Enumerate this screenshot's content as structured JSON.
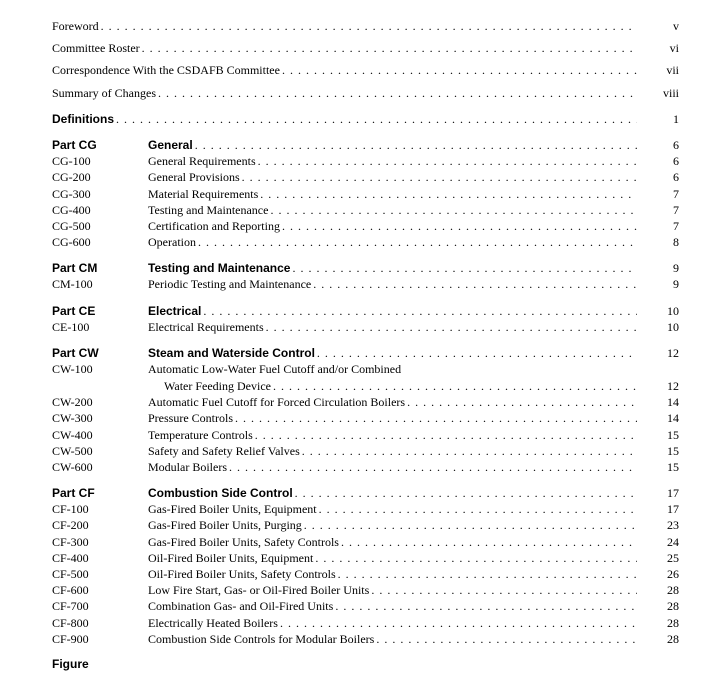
{
  "front": [
    {
      "title": "Foreword",
      "page": "v"
    },
    {
      "title": "Committee Roster",
      "page": "vi"
    },
    {
      "title": "Correspondence With the CSDAFB Committee",
      "page": "vii"
    },
    {
      "title": "Summary of Changes",
      "page": "viii"
    }
  ],
  "definitions": {
    "title": "Definitions",
    "page": "1"
  },
  "parts": [
    {
      "code": "Part CG",
      "title": "General",
      "page": "6",
      "items": [
        {
          "code": "CG-100",
          "title": "General Requirements",
          "page": "6"
        },
        {
          "code": "CG-200",
          "title": "General Provisions",
          "page": "6"
        },
        {
          "code": "CG-300",
          "title": "Material Requirements",
          "page": "7"
        },
        {
          "code": "CG-400",
          "title": "Testing and Maintenance",
          "page": "7"
        },
        {
          "code": "CG-500",
          "title": "Certification and Reporting",
          "page": "7"
        },
        {
          "code": "CG-600",
          "title": "Operation",
          "page": "8"
        }
      ]
    },
    {
      "code": "Part CM",
      "title": "Testing and Maintenance",
      "page": "9",
      "items": [
        {
          "code": "CM-100",
          "title": "Periodic Testing and Maintenance",
          "page": "9"
        }
      ]
    },
    {
      "code": "Part CE",
      "title": "Electrical",
      "page": "10",
      "items": [
        {
          "code": "CE-100",
          "title": "Electrical Requirements",
          "page": "10"
        }
      ]
    },
    {
      "code": "Part CW",
      "title": "Steam and Waterside Control",
      "page": "12",
      "items": [
        {
          "code": "CW-100",
          "title_wrap": "Automatic Low-Water Fuel Cutoff and/or Combined",
          "title_cont": "Water Feeding Device",
          "page": "12"
        },
        {
          "code": "CW-200",
          "title": "Automatic Fuel Cutoff for Forced Circulation Boilers",
          "page": "14"
        },
        {
          "code": "CW-300",
          "title": "Pressure Controls",
          "page": "14"
        },
        {
          "code": "CW-400",
          "title": "Temperature Controls",
          "page": "15"
        },
        {
          "code": "CW-500",
          "title": "Safety and Safety Relief Valves",
          "page": "15"
        },
        {
          "code": "CW-600",
          "title": "Modular Boilers",
          "page": "15"
        }
      ]
    },
    {
      "code": "Part CF",
      "title": "Combustion Side Control",
      "page": "17",
      "items": [
        {
          "code": "CF-100",
          "title": "Gas-Fired Boiler Units, Equipment",
          "page": "17"
        },
        {
          "code": "CF-200",
          "title": "Gas-Fired Boiler Units, Purging",
          "page": "23"
        },
        {
          "code": "CF-300",
          "title": "Gas-Fired Boiler Units, Safety Controls",
          "page": "24"
        },
        {
          "code": "CF-400",
          "title": "Oil-Fired Boiler Units, Equipment",
          "page": "25"
        },
        {
          "code": "CF-500",
          "title": "Oil-Fired Boiler Units, Safety Controls",
          "page": "26"
        },
        {
          "code": "CF-600",
          "title": "Low Fire Start, Gas- or Oil-Fired Boiler Units",
          "page": "28"
        },
        {
          "code": "CF-700",
          "title": "Combination Gas- and Oil-Fired Units",
          "page": "28"
        },
        {
          "code": "CF-800",
          "title": "Electrically Heated Boilers",
          "page": "28"
        },
        {
          "code": "CF-900",
          "title": "Combustion Side Controls for Modular Boilers",
          "page": "28"
        }
      ]
    }
  ],
  "figure_heading": "Figure"
}
